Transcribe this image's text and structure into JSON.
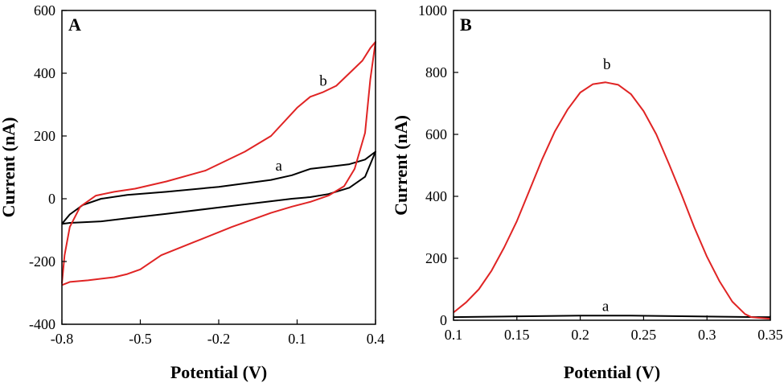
{
  "chart_data": [
    {
      "type": "line",
      "panel_label": "A",
      "title": "",
      "xlabel": "Potential (V)",
      "ylabel": "Current (nA)",
      "xlim": [
        -0.8,
        0.4
      ],
      "ylim": [
        -400,
        600
      ],
      "xticks": [
        -0.8,
        -0.5,
        -0.2,
        0.1,
        0.4
      ],
      "xtick_labels": [
        "-0.8",
        "-0.5",
        "-0.2",
        "0.1",
        "0.4"
      ],
      "yticks": [
        -400,
        -200,
        0,
        200,
        400,
        600
      ],
      "ytick_labels": [
        "-400",
        "-200",
        "0",
        "200",
        "400",
        "600"
      ],
      "grid": false,
      "series": [
        {
          "label": "a",
          "color": "#000000",
          "label_at": [
            0.03,
            90
          ],
          "x": [
            -0.8,
            -0.77,
            -0.72,
            -0.65,
            -0.55,
            -0.4,
            -0.2,
            0.0,
            0.08,
            0.15,
            0.22,
            0.3,
            0.36,
            0.4,
            0.36,
            0.3,
            0.22,
            0.15,
            0.08,
            0.0,
            -0.2,
            -0.4,
            -0.55,
            -0.65,
            -0.72,
            -0.77,
            -0.8
          ],
          "y": [
            -80,
            -50,
            -20,
            0,
            12,
            22,
            38,
            60,
            75,
            95,
            102,
            110,
            125,
            150,
            70,
            35,
            15,
            5,
            0,
            -8,
            -28,
            -48,
            -62,
            -72,
            -75,
            -77,
            -80
          ]
        },
        {
          "label": "b",
          "color": "#e02424",
          "label_at": [
            0.2,
            360
          ],
          "x": [
            -0.8,
            -0.79,
            -0.77,
            -0.73,
            -0.67,
            -0.6,
            -0.52,
            -0.4,
            -0.25,
            -0.1,
            0.0,
            0.1,
            0.15,
            0.2,
            0.25,
            0.3,
            0.35,
            0.38,
            0.4,
            0.38,
            0.36,
            0.32,
            0.28,
            0.22,
            0.15,
            0.08,
            0.0,
            -0.15,
            -0.3,
            -0.42,
            -0.5,
            -0.55,
            -0.6,
            -0.7,
            -0.77,
            -0.8
          ],
          "y": [
            -270,
            -180,
            -90,
            -25,
            10,
            22,
            32,
            55,
            90,
            150,
            200,
            290,
            325,
            340,
            360,
            400,
            440,
            480,
            500,
            380,
            210,
            95,
            40,
            10,
            -10,
            -25,
            -45,
            -90,
            -140,
            -180,
            -225,
            -240,
            -250,
            -260,
            -265,
            -275
          ]
        }
      ]
    },
    {
      "type": "line",
      "panel_label": "B",
      "title": "",
      "xlabel": "Potential (V)",
      "ylabel": "Current (nA)",
      "xlim": [
        0.1,
        0.35
      ],
      "ylim": [
        0,
        1000
      ],
      "xticks": [
        0.1,
        0.15,
        0.2,
        0.25,
        0.3,
        0.35
      ],
      "xtick_labels": [
        "0.1",
        "0.15",
        "0.2",
        "0.25",
        "0.3",
        "0.35"
      ],
      "yticks": [
        0,
        200,
        400,
        600,
        800,
        1000
      ],
      "ytick_labels": [
        "0",
        "200",
        "400",
        "600",
        "800",
        "1000"
      ],
      "grid": false,
      "series": [
        {
          "label": "a",
          "color": "#000000",
          "label_at": [
            0.22,
            30
          ],
          "x": [
            0.1,
            0.12,
            0.14,
            0.16,
            0.18,
            0.2,
            0.22,
            0.24,
            0.26,
            0.28,
            0.3,
            0.32,
            0.34,
            0.35
          ],
          "y": [
            10,
            11,
            12,
            13,
            14,
            15,
            15,
            15,
            14,
            13,
            12,
            11,
            10,
            10
          ]
        },
        {
          "label": "b",
          "color": "#e02424",
          "label_at": [
            0.221,
            810
          ],
          "x": [
            0.1,
            0.11,
            0.12,
            0.13,
            0.14,
            0.15,
            0.16,
            0.17,
            0.18,
            0.19,
            0.2,
            0.21,
            0.22,
            0.23,
            0.24,
            0.25,
            0.26,
            0.27,
            0.28,
            0.29,
            0.3,
            0.31,
            0.32,
            0.33,
            0.335,
            0.34,
            0.35
          ],
          "y": [
            25,
            58,
            100,
            160,
            235,
            320,
            420,
            520,
            610,
            680,
            735,
            762,
            768,
            760,
            730,
            675,
            600,
            505,
            405,
            300,
            205,
            125,
            60,
            20,
            10,
            8,
            5
          ]
        }
      ]
    }
  ]
}
